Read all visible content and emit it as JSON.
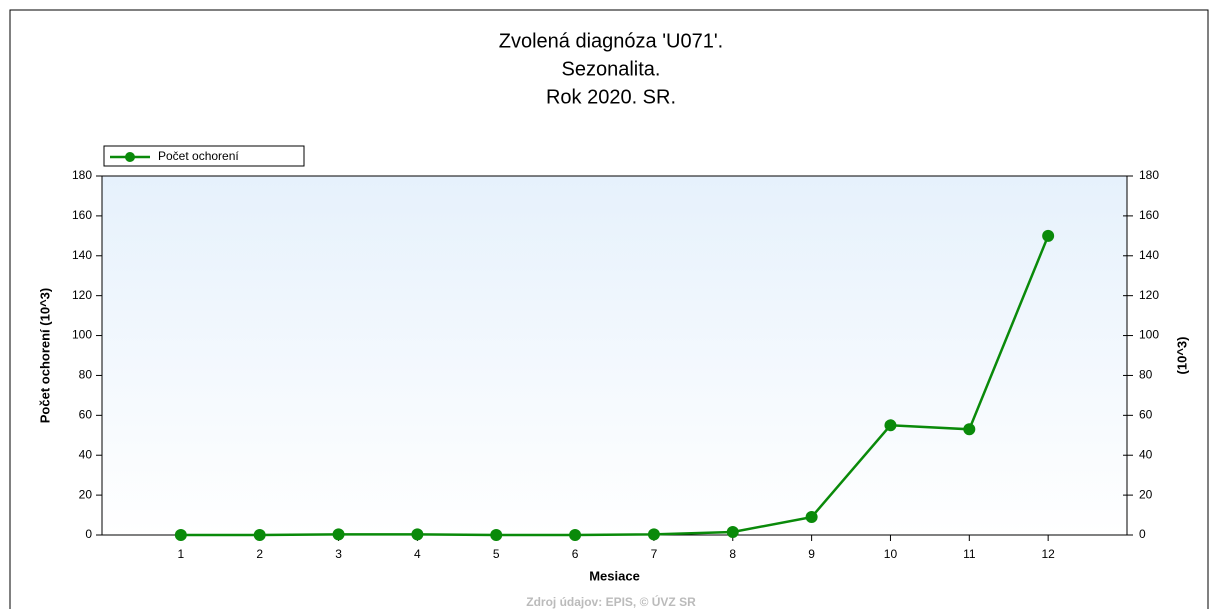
{
  "chart_data": {
    "type": "line",
    "title_lines": [
      "Zvolená diagnóza 'U071'.",
      "Sezonalita.",
      "Rok 2020. SR."
    ],
    "x_label": "Mesiace",
    "y_label": "Počet ochorení (10^3)",
    "y2_label": "(10^3)",
    "source": "Zdroj údajov: EPIS, © ÚVZ SR",
    "x": [
      1,
      2,
      3,
      4,
      5,
      6,
      7,
      8,
      9,
      10,
      11,
      12
    ],
    "xlim": [
      0,
      13
    ],
    "xticks": [
      1,
      2,
      3,
      4,
      5,
      6,
      7,
      8,
      9,
      10,
      11,
      12
    ],
    "series": [
      {
        "name": "Počet ochorení",
        "color": "#0a8a0a",
        "values": [
          0,
          0,
          0.3,
          0.3,
          0,
          0,
          0.3,
          1.5,
          9,
          55,
          53,
          150
        ]
      }
    ],
    "ylim": [
      0,
      180
    ],
    "yticks": [
      0,
      20,
      40,
      60,
      80,
      100,
      120,
      140,
      160,
      180
    ],
    "y2lim": [
      0,
      180
    ],
    "y2ticks": [
      0,
      20,
      40,
      60,
      80,
      100,
      120,
      140,
      160,
      180
    ],
    "grid": false,
    "legend": "top-left"
  }
}
